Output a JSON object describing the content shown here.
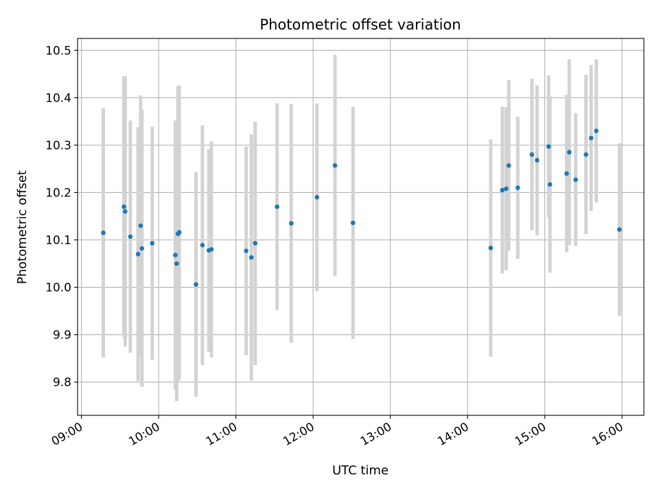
{
  "chart_data": {
    "type": "scatter",
    "title": "Photometric offset variation",
    "xlabel": "UTC time",
    "ylabel": "Photometric offset",
    "x_type": "time",
    "xlim": [
      "08:57",
      "16:17"
    ],
    "ylim": [
      9.73,
      10.525
    ],
    "x_ticks": [
      "09:00",
      "10:00",
      "11:00",
      "12:00",
      "13:00",
      "14:00",
      "15:00",
      "16:00"
    ],
    "y_ticks": [
      "9.8",
      "9.9",
      "10.0",
      "10.1",
      "10.2",
      "10.3",
      "10.4",
      "10.5"
    ],
    "grid": true,
    "colors": {
      "point": "#1f77b4",
      "errorbar": "#d3d3d3",
      "grid": "#b0b0b0"
    },
    "series": [
      {
        "points": [
          {
            "x": "09:17",
            "y": 10.115,
            "err": 0.263
          },
          {
            "x": "09:33",
            "y": 10.17,
            "err": 0.275
          },
          {
            "x": "09:34",
            "y": 10.16,
            "err": 0.285
          },
          {
            "x": "09:38",
            "y": 10.107,
            "err": 0.245
          },
          {
            "x": "09:44",
            "y": 10.07,
            "err": 0.268
          },
          {
            "x": "09:46",
            "y": 10.13,
            "err": 0.275
          },
          {
            "x": "09:47",
            "y": 10.082,
            "err": 0.292
          },
          {
            "x": "09:55",
            "y": 10.093,
            "err": 0.246
          },
          {
            "x": "10:13",
            "y": 10.068,
            "err": 0.284
          },
          {
            "x": "10:14",
            "y": 10.05,
            "err": 0.29
          },
          {
            "x": "10:15",
            "y": 10.113,
            "err": 0.311
          },
          {
            "x": "10:16",
            "y": 10.116,
            "err": 0.31
          },
          {
            "x": "10:29",
            "y": 10.006,
            "err": 0.237
          },
          {
            "x": "10:34",
            "y": 10.089,
            "err": 0.253
          },
          {
            "x": "10:39",
            "y": 10.078,
            "err": 0.214
          },
          {
            "x": "10:41",
            "y": 10.08,
            "err": 0.228
          },
          {
            "x": "11:08",
            "y": 10.077,
            "err": 0.22
          },
          {
            "x": "11:12",
            "y": 10.063,
            "err": 0.26
          },
          {
            "x": "11:15",
            "y": 10.093,
            "err": 0.257
          },
          {
            "x": "11:32",
            "y": 10.17,
            "err": 0.218
          },
          {
            "x": "11:43",
            "y": 10.135,
            "err": 0.252
          },
          {
            "x": "12:03",
            "y": 10.19,
            "err": 0.198
          },
          {
            "x": "12:17",
            "y": 10.257,
            "err": 0.233
          },
          {
            "x": "12:31",
            "y": 10.136,
            "err": 0.245
          },
          {
            "x": "14:18",
            "y": 10.083,
            "err": 0.229
          },
          {
            "x": "14:27",
            "y": 10.205,
            "err": 0.176
          },
          {
            "x": "14:30",
            "y": 10.208,
            "err": 0.172
          },
          {
            "x": "14:32",
            "y": 10.257,
            "err": 0.18
          },
          {
            "x": "14:39",
            "y": 10.21,
            "err": 0.15
          },
          {
            "x": "14:50",
            "y": 10.28,
            "err": 0.16
          },
          {
            "x": "14:54",
            "y": 10.268,
            "err": 0.158
          },
          {
            "x": "15:03",
            "y": 10.297,
            "err": 0.15
          },
          {
            "x": "15:04",
            "y": 10.217,
            "err": 0.186
          },
          {
            "x": "15:17",
            "y": 10.24,
            "err": 0.166
          },
          {
            "x": "15:19",
            "y": 10.285,
            "err": 0.196
          },
          {
            "x": "15:24",
            "y": 10.227,
            "err": 0.14
          },
          {
            "x": "15:32",
            "y": 10.28,
            "err": 0.168
          },
          {
            "x": "15:36",
            "y": 10.315,
            "err": 0.154
          },
          {
            "x": "15:40",
            "y": 10.33,
            "err": 0.151
          },
          {
            "x": "15:58",
            "y": 10.122,
            "err": 0.182
          }
        ]
      }
    ]
  }
}
